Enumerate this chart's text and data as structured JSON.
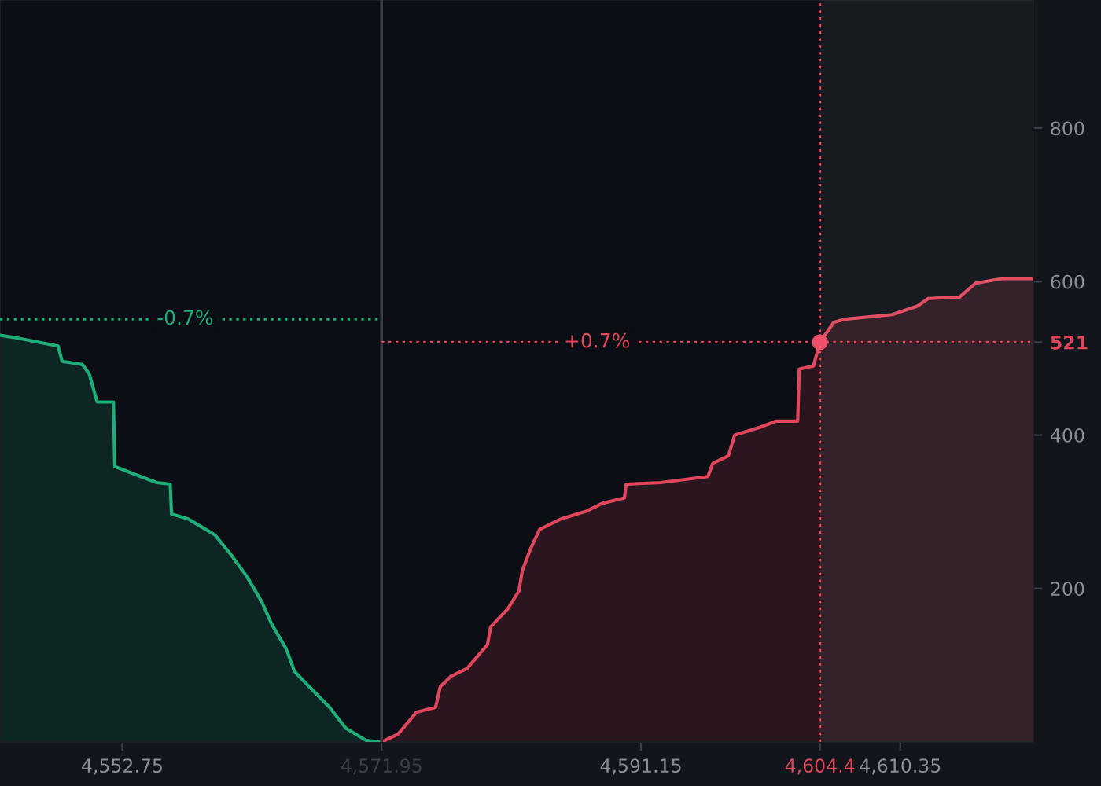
{
  "chart_data": {
    "type": "area",
    "xlim": [
      4543.7,
      4620.2
    ],
    "ylim": [
      0,
      967
    ],
    "xticks": [
      {
        "value": 4552.75,
        "label": "4,552.75"
      },
      {
        "value": 4571.95,
        "label": "4,571.95"
      },
      {
        "value": 4591.15,
        "label": "4,591.15"
      },
      {
        "value": 4604.4,
        "label": "4,604.4"
      },
      {
        "value": 4610.35,
        "label": "4,610.35"
      }
    ],
    "yticks": [
      200,
      400,
      521,
      600,
      800
    ],
    "grid": false,
    "legend": false,
    "series": [
      {
        "color": "#1fae7a",
        "x": [
          4543.7,
          4544.8,
          4548.0,
          4548.3,
          4549.8,
          4550.3,
          4550.7,
          4550.9,
          4552.1,
          4552.2,
          4553.8,
          4555.3,
          4556.3,
          4556.4,
          4557.6,
          4559.6,
          4560.8,
          4562.0,
          4563.1,
          4563.8,
          4564.9,
          4565.5,
          4566.6,
          4568.1,
          4569.3,
          4570.8,
          4571.95
        ],
        "values": [
          530,
          527,
          516,
          496,
          492,
          480,
          455,
          443,
          443,
          359,
          348,
          338,
          336,
          297,
          291,
          270,
          244,
          215,
          182,
          154,
          121,
          92,
          72,
          45,
          18,
          2,
          0
        ]
      },
      {
        "color": "#e0465c",
        "x": [
          4571.95,
          4573.15,
          4574.55,
          4575.94,
          4576.29,
          4577.11,
          4578.28,
          4579.79,
          4580.02,
          4581.31,
          4582.12,
          4582.36,
          4582.94,
          4583.64,
          4585.27,
          4587.13,
          4588.3,
          4589.93,
          4590.05,
          4592.61,
          4596.11,
          4596.46,
          4597.62,
          4598.09,
          4599.95,
          4601.12,
          4602.75,
          4602.87,
          4603.92,
          4604.4,
          4605.43,
          4606.25,
          4609.74,
          4611.61,
          4612.42,
          4614.75,
          4615.92,
          4617.9,
          4620.2
        ],
        "values": [
          0,
          10,
          39,
          45,
          72,
          86,
          96,
          127,
          150,
          174,
          197,
          223,
          250,
          277,
          291,
          301,
          311,
          318,
          336,
          338,
          346,
          363,
          373,
          400,
          410,
          418,
          418,
          486,
          490,
          521,
          547,
          551,
          557,
          568,
          578,
          580,
          598,
          604,
          604
        ]
      },
      {
        "type": "scatter",
        "color": "#f0506a",
        "x": [
          4604.4
        ],
        "values": [
          521
        ],
        "marker": "circle"
      }
    ],
    "ref_lines": [
      {
        "axis": "x",
        "value": 4571.95,
        "color": "#3a3e48",
        "line_style": "solid"
      },
      {
        "axis": "x",
        "value": 4604.4,
        "color": "#e0465c",
        "line_style": "dotted"
      },
      {
        "axis": "y",
        "value": 551,
        "color": "#1fae7a",
        "line_style": "dotted"
      },
      {
        "axis": "y",
        "value": 521,
        "color": "#e0465c",
        "line_style": "dotted"
      }
    ],
    "annotations": [
      {
        "text": "-0.7%",
        "x": 4557.4,
        "y": 551
      },
      {
        "text": "+0.7%",
        "x": 4587.9,
        "y": 521
      }
    ],
    "bands": [
      {
        "axis": "x",
        "from": 4604.4,
        "to": 4620.2,
        "color": "#ffffff"
      }
    ]
  }
}
